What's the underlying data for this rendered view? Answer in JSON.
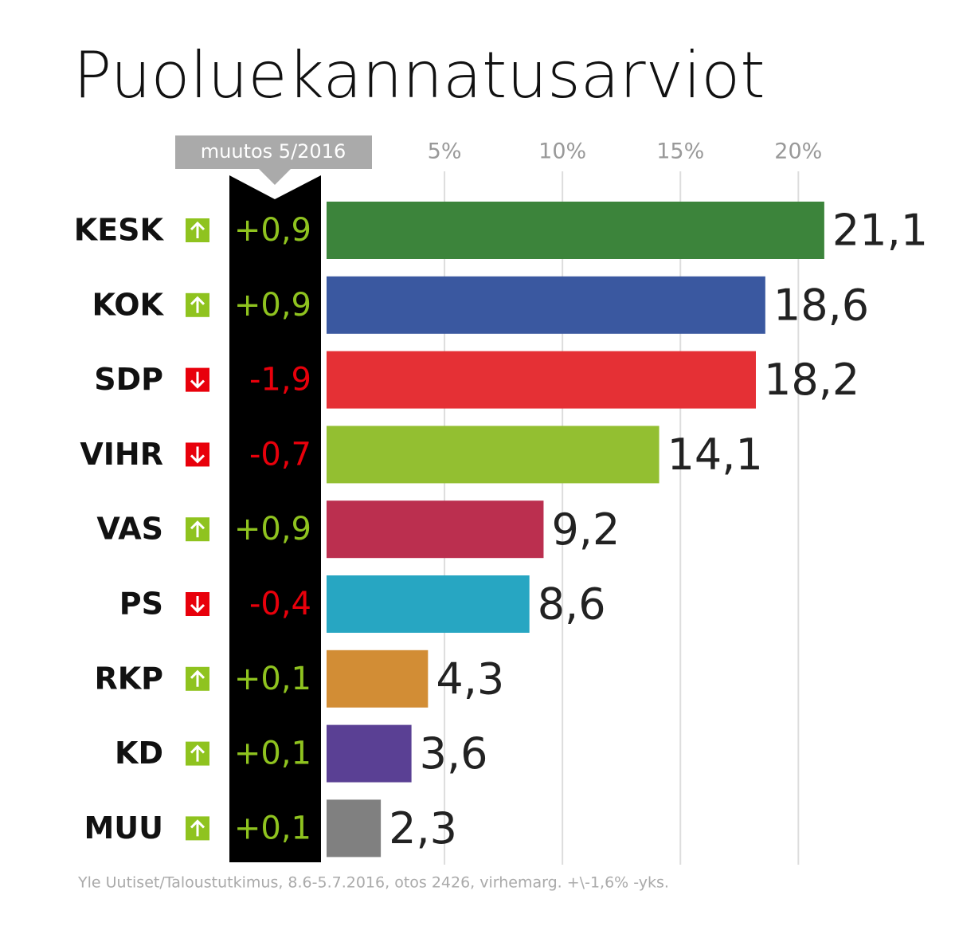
{
  "chart_data": {
    "type": "bar",
    "orientation": "horizontal",
    "title": "Puoluekannatusarviot",
    "categories": [
      "KESK",
      "KOK",
      "SDP",
      "VIHR",
      "VAS",
      "PS",
      "RKP",
      "KD",
      "MUU"
    ],
    "values": [
      21.1,
      18.6,
      18.2,
      14.1,
      9.2,
      8.6,
      4.3,
      3.6,
      2.3
    ],
    "value_labels": [
      "21,1",
      "18,6",
      "18,2",
      "14,1",
      "9,2",
      "8,6",
      "4,3",
      "3,6",
      "2,3"
    ],
    "colors": [
      "#3c843b",
      "#3a58a0",
      "#e53035",
      "#93bf31",
      "#bb2f4f",
      "#27a6c2",
      "#d28d35",
      "#5a4094",
      "#808080"
    ],
    "xlim": [
      0,
      26
    ],
    "xticks": [
      {
        "value": 5,
        "label": "5%"
      },
      {
        "value": 10,
        "label": "10%"
      },
      {
        "value": 15,
        "label": "15%"
      },
      {
        "value": 20,
        "label": "20%"
      }
    ],
    "grid": true,
    "change": {
      "title": "muutos 5/2016",
      "values": [
        0.9,
        0.9,
        -1.9,
        -0.7,
        0.9,
        -0.4,
        0.1,
        0.1,
        0.1
      ],
      "value_labels": [
        "+0,9",
        "+0,9",
        "-1,9",
        "-0,7",
        "+0,9",
        "-0,4",
        "+0,1",
        "+0,1",
        "+0,1"
      ]
    },
    "source": "Yle Uutiset/Taloustutkimus, 8.6-5.7.2016, otos 2426, virhemarg. +\\-1,6% -yks."
  }
}
